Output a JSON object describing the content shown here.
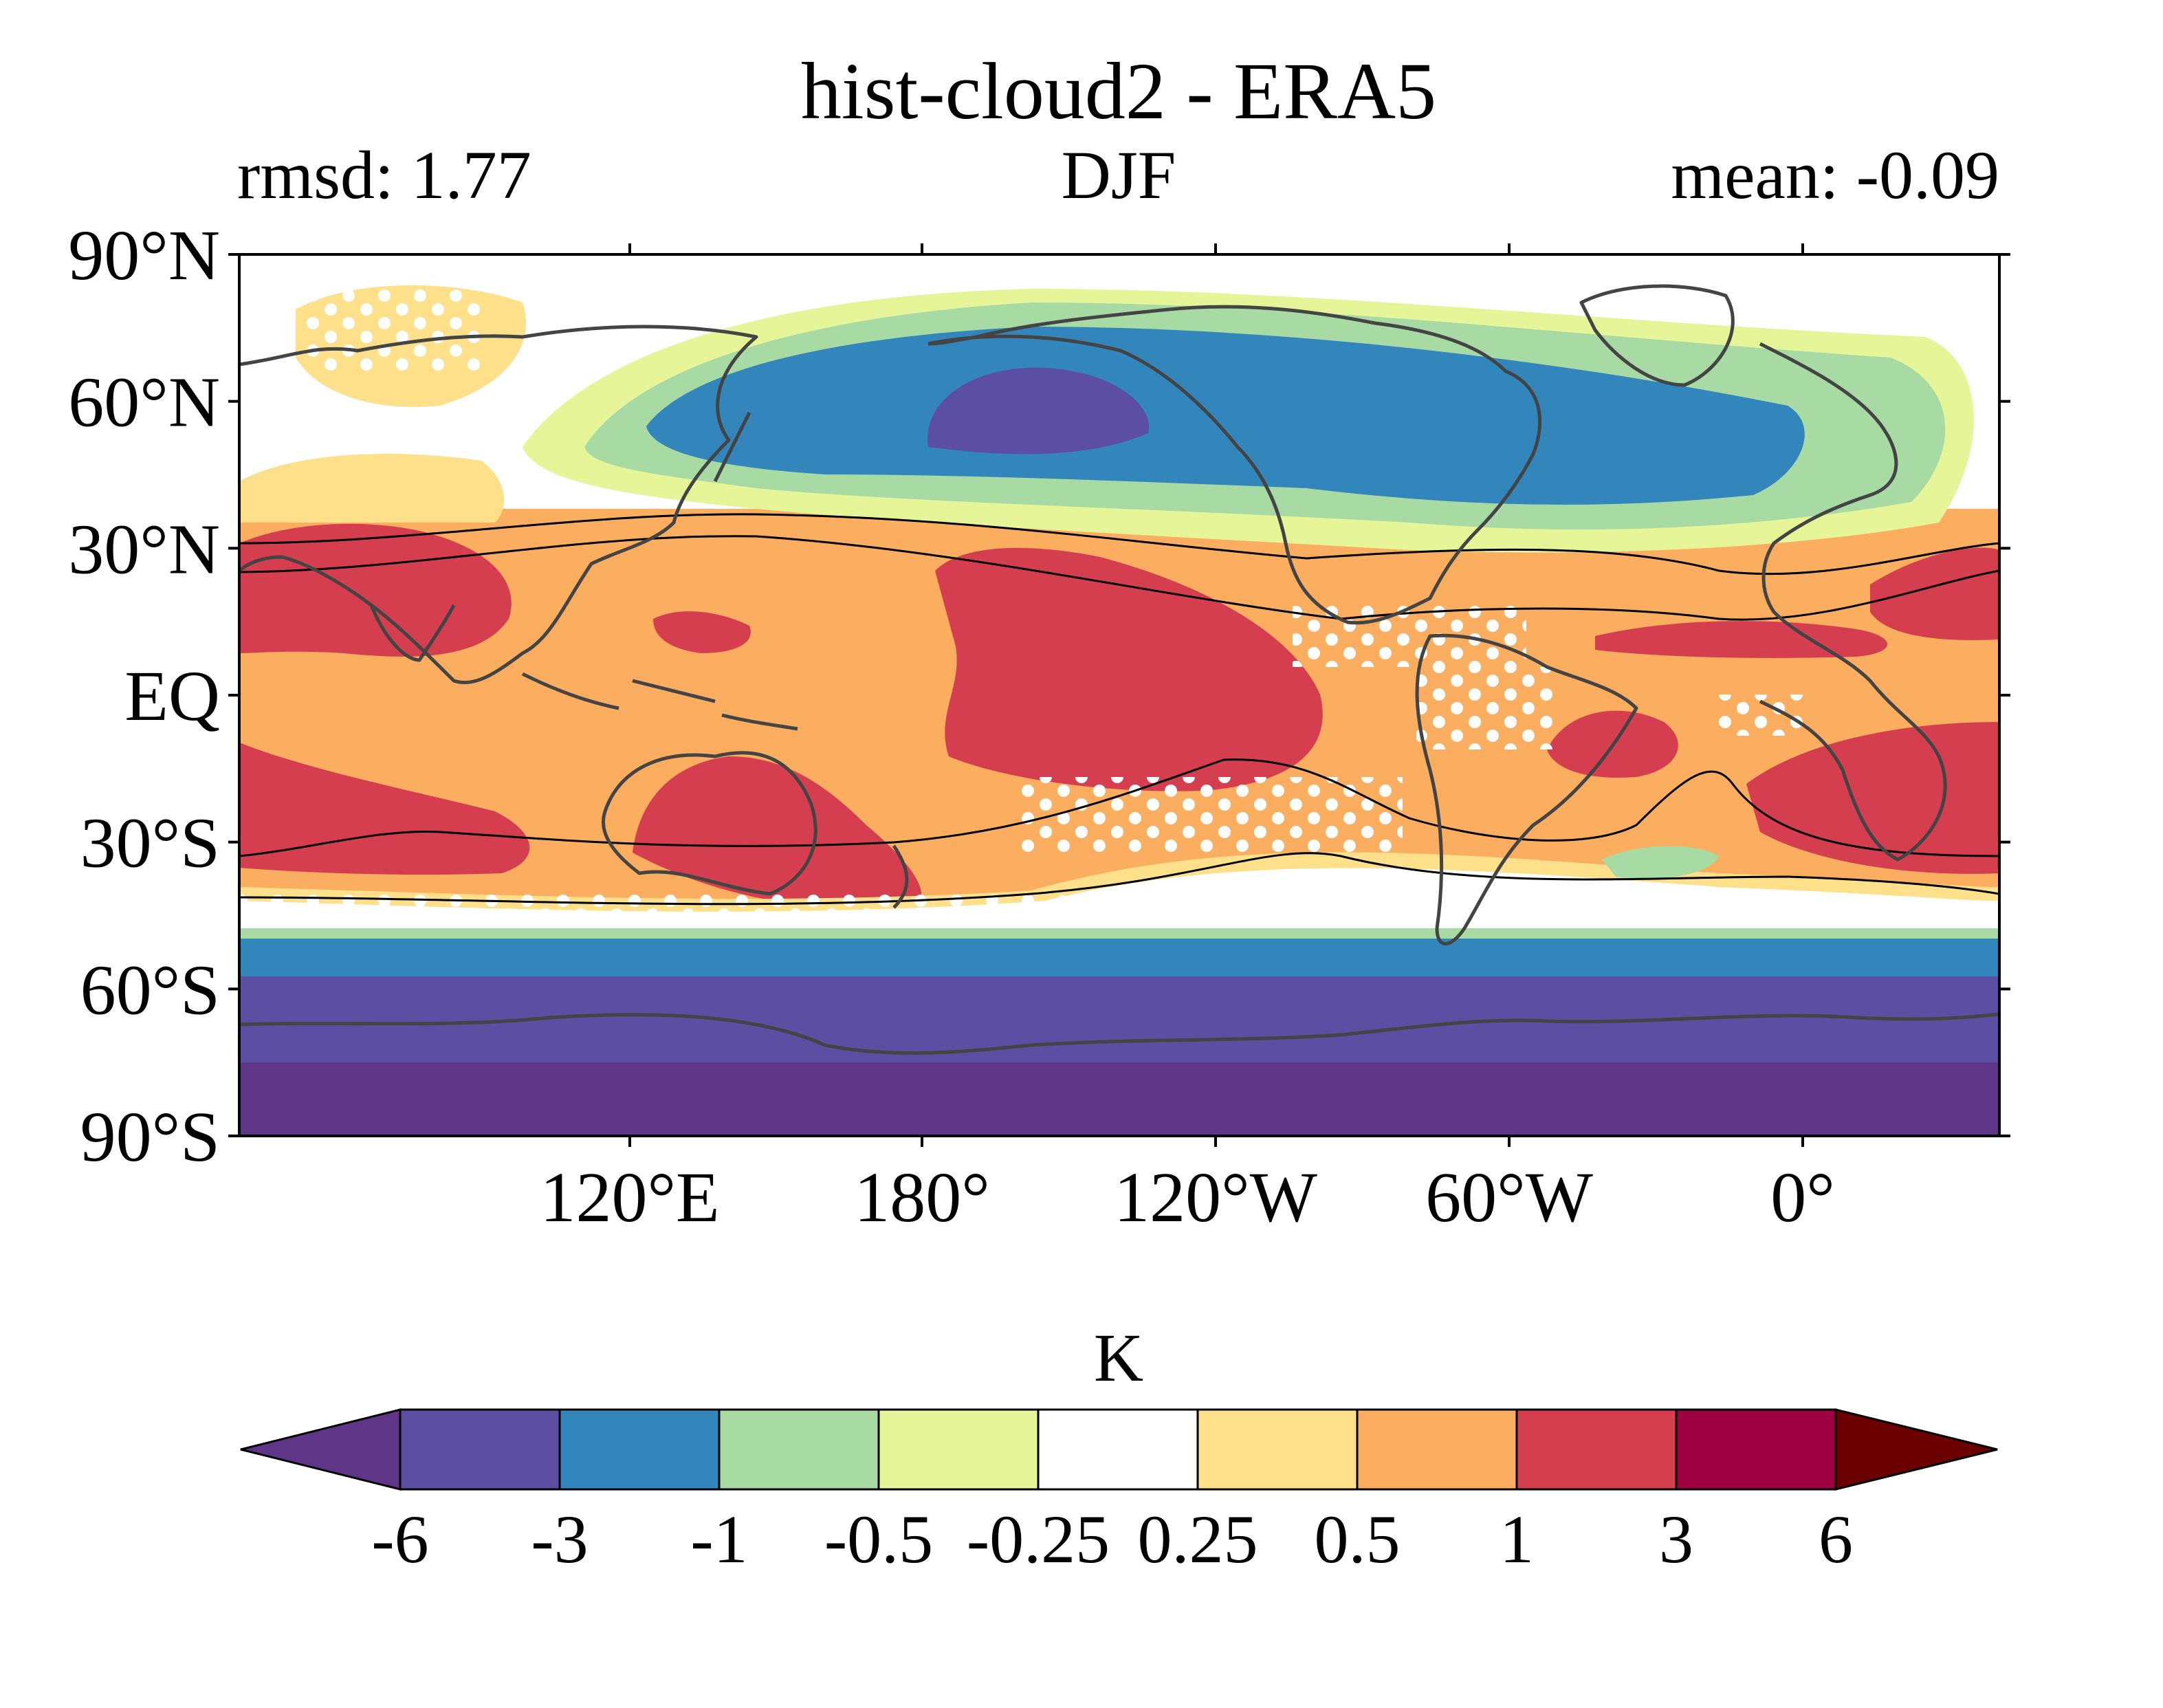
{
  "title": "hist-cloud2 - ERA5",
  "stat_left": "rmsd: 1.77",
  "season": "DJF",
  "stat_right": "mean: -0.09",
  "lat_labels": [
    "90°N",
    "60°N",
    "30°N",
    "EQ",
    "30°S",
    "60°S",
    "90°S"
  ],
  "lon_labels": [
    "120°E",
    "180°",
    "120°W",
    "60°W",
    "0°"
  ],
  "colorbar": {
    "unit": "K",
    "tick_labels": [
      "-6",
      "-3",
      "-1",
      "-0.5",
      "-0.25",
      "0.25",
      "0.5",
      "1",
      "3",
      "6"
    ],
    "colors": {
      "under": "#5e3587",
      "bins": [
        "#5c4fa3",
        "#3286bc",
        "#a8dba3",
        "#e6f598",
        "#ffffff",
        "#fee08b",
        "#fbad60",
        "#d53e4f",
        "#9e0142"
      ],
      "over": "#6b0000"
    }
  },
  "field_colors": {
    "deep_purple": "#5e3587",
    "purple": "#5c4fa3",
    "blue": "#3286bc",
    "green": "#a8dba3",
    "yellowgreen": "#e6f598",
    "white": "#ffffff",
    "yellow": "#fee08b",
    "orange": "#fbad60",
    "red": "#d53e4f",
    "coast": "#444444"
  }
}
